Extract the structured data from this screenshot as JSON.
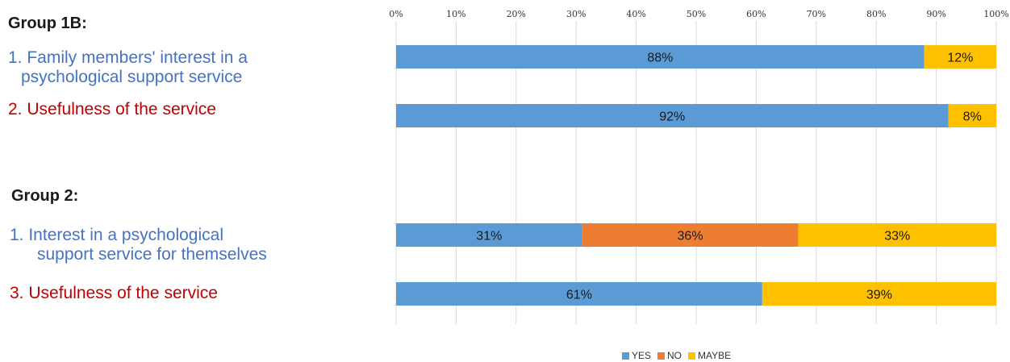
{
  "chart_data": {
    "type": "bar",
    "orientation": "horizontal",
    "stacked": true,
    "xlim": [
      0,
      100
    ],
    "x_ticks": [
      "0%",
      "10%",
      "20%",
      "30%",
      "40%",
      "50%",
      "60%",
      "70%",
      "80%",
      "90%",
      "100%"
    ],
    "grid": true,
    "legend_position": "bottom",
    "series": [
      {
        "name": "YES",
        "color": "#5b9bd5"
      },
      {
        "name": "NO",
        "color": "#ed7d31"
      },
      {
        "name": "MAYBE",
        "color": "#ffc000"
      }
    ],
    "groups": [
      {
        "title": "Group 1B:",
        "categories": [
          {
            "label_lines": [
              "1. Family members' interest in a",
              "psychological support service"
            ],
            "color": "#4472c4",
            "values": [
              88,
              0,
              12
            ],
            "labels": [
              "88%",
              "",
              "12%"
            ]
          },
          {
            "label_lines": [
              "2. Usefulness of the service"
            ],
            "color": "#c00000",
            "values": [
              92,
              0,
              8
            ],
            "labels": [
              "92%",
              "",
              "8%"
            ]
          }
        ]
      },
      {
        "title": "Group 2:",
        "categories": [
          {
            "label_lines": [
              "1. Interest in a psychological",
              "support service for themselves"
            ],
            "color": "#4472c4",
            "values": [
              31,
              36,
              33
            ],
            "labels": [
              "31%",
              "36%",
              "33%"
            ]
          },
          {
            "label_lines": [
              "3. Usefulness of the service"
            ],
            "color": "#c00000",
            "values": [
              61,
              0,
              39
            ],
            "labels": [
              "61%",
              "",
              "39%"
            ]
          }
        ]
      }
    ]
  }
}
